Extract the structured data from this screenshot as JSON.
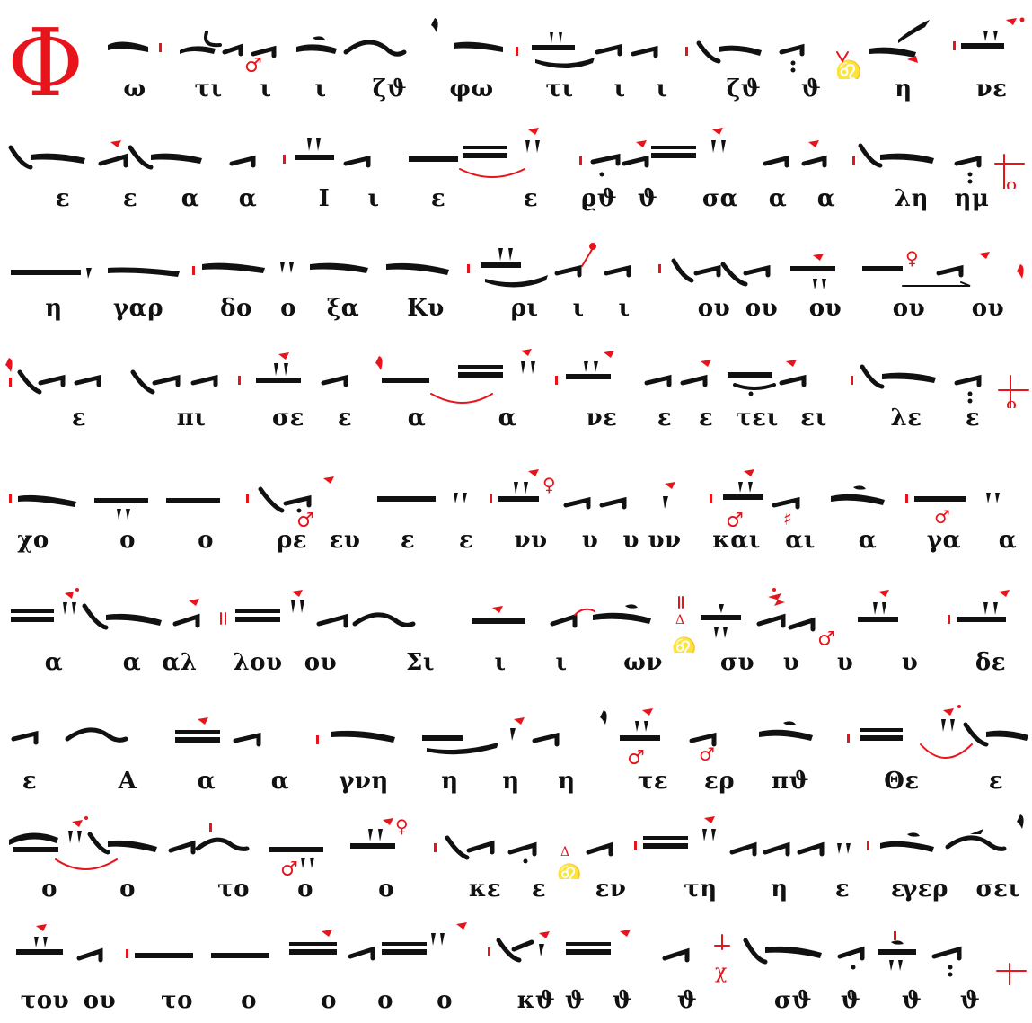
{
  "drop_cap": "Φ",
  "accent_color": "#e8141b",
  "ink_color": "#111111",
  "lines": [
    {
      "syllables": [
        "ω",
        "τι",
        "ι",
        "ι",
        "ζϑ",
        "φω",
        "τι",
        "ι",
        "ι",
        "ζϑ",
        "ϑ",
        "η",
        "νε"
      ]
    },
    {
      "syllables": [
        "ε",
        "ε",
        "α",
        "α",
        "Ι",
        "ι",
        "ε",
        "ε",
        "ϱϑ",
        "ϑ",
        "σα",
        "α",
        "α",
        "λη",
        "ημ"
      ]
    },
    {
      "syllables": [
        "η",
        "γαρ",
        "δο",
        "ο",
        "ξα",
        "Κυ",
        "ρι",
        "ι",
        "ι",
        "ου",
        "ου",
        "ου",
        "ου",
        "ου"
      ]
    },
    {
      "syllables": [
        "ε",
        "πι",
        "σε",
        "ε",
        "α",
        "α",
        "νε",
        "ε",
        "ε",
        "τει",
        "ει",
        "λε",
        "ε"
      ]
    },
    {
      "syllables": [
        "χο",
        "ο",
        "ο",
        "ρε",
        "ευ",
        "ε",
        "ε",
        "νυ",
        "υ",
        "υ υν",
        "και",
        "αι",
        "α",
        "γα",
        "α"
      ]
    },
    {
      "syllables": [
        "α",
        "α",
        "αλ",
        "λου",
        "ου",
        "Σι",
        "ι",
        "ι",
        "ων",
        "συ",
        "υ",
        "υ",
        "υ",
        "δε"
      ]
    },
    {
      "syllables": [
        "ε",
        "Α",
        "α",
        "α",
        "γνη",
        "η",
        "η",
        "η",
        "τε",
        "ερ",
        "πϑ",
        "Θε",
        "ε"
      ]
    },
    {
      "syllables": [
        "ο",
        "ο",
        "το",
        "ο",
        "ο",
        "κε",
        "ε",
        "εν",
        "τη",
        "η",
        "ε",
        "ε",
        "γερ",
        "σει"
      ]
    },
    {
      "syllables": [
        "του",
        "ου",
        "το",
        "ο",
        "ο",
        "ο",
        "ο",
        "κϑ",
        "ϑ",
        "ϑ",
        "ϑ",
        "σϑ",
        "ϑ",
        "ϑ",
        "ϑ"
      ]
    }
  ]
}
